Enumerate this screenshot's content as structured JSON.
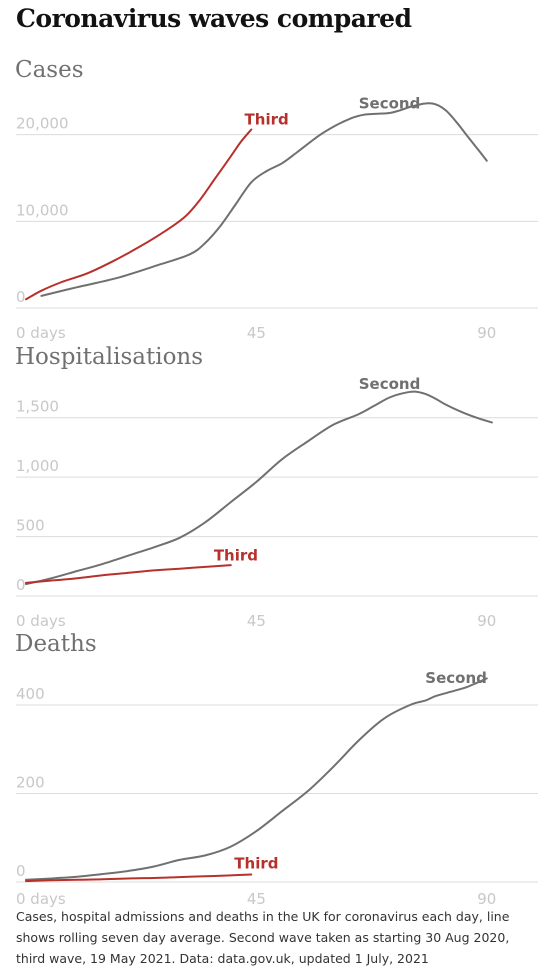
{
  "title": "Coronavirus waves compared",
  "footnote": "Cases, hospital admissions and deaths in the UK for coronavirus each day, line shows rolling seven day average. Second wave taken as starting 30 Aug 2020, third wave, 19 May 2021. Data: data.gov.uk, updated 1 July, 2021",
  "colors": {
    "second": "#707070",
    "third": "#b7312c",
    "grid": "#dcdcdc",
    "ticks": "#c8c8c8"
  },
  "chart_data": [
    {
      "type": "line",
      "title": "Cases",
      "x_ticks": [
        {
          "value": 0,
          "label": "0 days"
        },
        {
          "value": 45,
          "label": "45"
        },
        {
          "value": 90,
          "label": "90"
        }
      ],
      "y_ticks": [
        {
          "value": 0,
          "label": "0"
        },
        {
          "value": 10000,
          "label": "10,000"
        },
        {
          "value": 20000,
          "label": "20,000"
        }
      ],
      "xlim": [
        0,
        100
      ],
      "ylim": [
        0,
        24000
      ],
      "grid": true,
      "series": [
        {
          "name": "Second",
          "color": "#707070",
          "label_at": {
            "x": 71,
            "y": 23000,
            "anchor": "middle"
          },
          "x": [
            3,
            10,
            18,
            26,
            32,
            35,
            38,
            41,
            44,
            47,
            50,
            53,
            57,
            60,
            62,
            64,
            66,
            68,
            71,
            73,
            75,
            78,
            80,
            82,
            84,
            86,
            88,
            90
          ],
          "y": [
            1400,
            2400,
            3500,
            5000,
            6200,
            7500,
            9500,
            12000,
            14500,
            15800,
            16700,
            18000,
            19800,
            20900,
            21500,
            22000,
            22300,
            22400,
            22500,
            22800,
            23200,
            23600,
            23500,
            22800,
            21500,
            20000,
            18500,
            17000
          ]
        },
        {
          "name": "Third",
          "color": "#b7312c",
          "label_at": {
            "x": 47,
            "y": 21200,
            "anchor": "middle"
          },
          "x": [
            0,
            3,
            7,
            12,
            17,
            22,
            27,
            31,
            34,
            37,
            40,
            42,
            44
          ],
          "y": [
            1000,
            2000,
            3000,
            4000,
            5400,
            7000,
            8800,
            10500,
            12500,
            15000,
            17500,
            19200,
            20600
          ]
        }
      ]
    },
    {
      "type": "line",
      "title": "Hospitalisations",
      "x_ticks": [
        {
          "value": 0,
          "label": "0 days"
        },
        {
          "value": 45,
          "label": "45"
        },
        {
          "value": 90,
          "label": "90"
        }
      ],
      "y_ticks": [
        {
          "value": 0,
          "label": "0"
        },
        {
          "value": 500,
          "label": "500"
        },
        {
          "value": 1000,
          "label": "1,000"
        },
        {
          "value": 1500,
          "label": "1,500"
        }
      ],
      "xlim": [
        0,
        100
      ],
      "ylim": [
        0,
        1750
      ],
      "grid": true,
      "series": [
        {
          "name": "Second",
          "color": "#707070",
          "label_at": {
            "x": 71,
            "y": 1740,
            "anchor": "middle"
          },
          "x": [
            0,
            5,
            10,
            15,
            20,
            25,
            30,
            35,
            40,
            45,
            50,
            55,
            60,
            65,
            68,
            71,
            74,
            76,
            78,
            80,
            82,
            85,
            88,
            91
          ],
          "y": [
            100,
            150,
            210,
            270,
            340,
            410,
            490,
            620,
            790,
            960,
            1150,
            1300,
            1440,
            1530,
            1600,
            1670,
            1710,
            1720,
            1700,
            1660,
            1610,
            1550,
            1500,
            1460
          ]
        },
        {
          "name": "Third",
          "color": "#b7312c",
          "label_at": {
            "x": 41,
            "y": 300,
            "anchor": "middle"
          },
          "x": [
            0,
            5,
            10,
            15,
            20,
            25,
            30,
            35,
            40
          ],
          "y": [
            110,
            130,
            150,
            175,
            195,
            215,
            230,
            245,
            260
          ]
        }
      ]
    },
    {
      "type": "line",
      "title": "Deaths",
      "x_ticks": [
        {
          "value": 0,
          "label": "0 days"
        },
        {
          "value": 45,
          "label": "45"
        },
        {
          "value": 90,
          "label": "90"
        }
      ],
      "y_ticks": [
        {
          "value": 0,
          "label": "0"
        },
        {
          "value": 200,
          "label": "200"
        },
        {
          "value": 400,
          "label": "400"
        }
      ],
      "xlim": [
        0,
        100
      ],
      "ylim": [
        0,
        470
      ],
      "grid": true,
      "series": [
        {
          "name": "Second",
          "color": "#707070",
          "label_at": {
            "x": 84,
            "y": 450,
            "anchor": "middle"
          },
          "x": [
            0,
            5,
            10,
            15,
            20,
            25,
            30,
            35,
            40,
            45,
            50,
            55,
            60,
            65,
            70,
            75,
            78,
            80,
            83,
            86,
            88,
            90
          ],
          "y": [
            5,
            8,
            12,
            18,
            25,
            35,
            50,
            60,
            80,
            115,
            160,
            205,
            260,
            320,
            370,
            400,
            410,
            420,
            430,
            440,
            450,
            460
          ]
        },
        {
          "name": "Third",
          "color": "#b7312c",
          "label_at": {
            "x": 45,
            "y": 30,
            "anchor": "middle"
          },
          "x": [
            0,
            5,
            10,
            15,
            20,
            25,
            30,
            35,
            40,
            44
          ],
          "y": [
            2,
            4,
            5,
            6,
            8,
            9,
            11,
            13,
            15,
            17
          ]
        }
      ]
    }
  ]
}
